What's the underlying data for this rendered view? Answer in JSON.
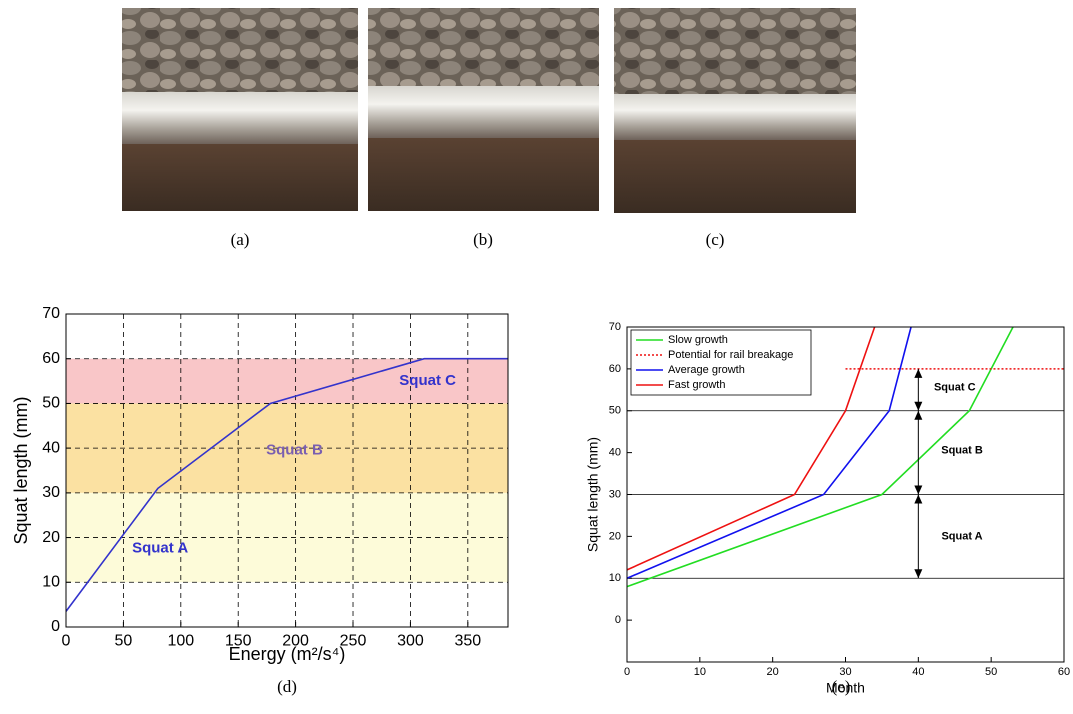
{
  "photos": [
    {
      "caption": "(a)"
    },
    {
      "caption": "(b)"
    },
    {
      "caption": "(c)"
    }
  ],
  "chart_data": [
    {
      "type": "line",
      "caption": "(d)",
      "x_label": "Energy (m²/s⁴)",
      "y_label": "Squat length (mm)",
      "xlim": [
        0,
        385
      ],
      "ylim": [
        0,
        70
      ],
      "xticks": [
        0,
        50,
        100,
        150,
        200,
        250,
        300,
        350
      ],
      "yticks": [
        0,
        10,
        20,
        30,
        40,
        50,
        60,
        70
      ],
      "grid": true,
      "bands": [
        {
          "from": 10,
          "to": 30,
          "color": "#fdfbd9",
          "label": "Squat A",
          "label_color": "#3333cc",
          "text_x": 82,
          "text_y": 17.5
        },
        {
          "from": 30,
          "to": 50,
          "color": "#fbe1a2",
          "label": "Squat B",
          "label_color": "#7a5fb0",
          "text_x": 199,
          "text_y": 39.5
        },
        {
          "from": 50,
          "to": 60,
          "color": "#f9c6c8",
          "label": "Squat C",
          "label_color": "#3333cc",
          "text_x": 315,
          "text_y": 55
        }
      ],
      "series": [
        {
          "color": "#3333cc",
          "x": [
            0,
            80,
            178,
            312,
            385
          ],
          "values": [
            3.5,
            31,
            50,
            60,
            60
          ]
        }
      ]
    },
    {
      "type": "line",
      "caption": "(e)",
      "x_label": "Month",
      "y_label": "Squat length (mm)",
      "xlim": [
        0,
        60
      ],
      "ylim": [
        -10,
        70
      ],
      "xticks": [
        0,
        10,
        20,
        30,
        40,
        50,
        60
      ],
      "yticks": [
        0,
        10,
        20,
        30,
        40,
        50,
        60,
        70
      ],
      "grid": false,
      "legend": "upper-left",
      "hlines": [
        10,
        30,
        50
      ],
      "series": [
        {
          "name": "Slow growth",
          "color": "#22dd22",
          "x": [
            0,
            35,
            47,
            53
          ],
          "values": [
            8,
            30,
            50,
            70
          ]
        },
        {
          "name": "Potential for rail breakage",
          "color": "#ee1111",
          "dotted": true,
          "x": [
            30,
            60
          ],
          "values": [
            60,
            60
          ]
        },
        {
          "name": "Average growth",
          "color": "#1111ee",
          "x": [
            0,
            27,
            36,
            39
          ],
          "values": [
            10,
            30,
            50,
            70
          ]
        },
        {
          "name": "Fast growth",
          "color": "#ee1111",
          "x": [
            0,
            23,
            30,
            34
          ],
          "values": [
            12,
            30,
            50,
            70
          ]
        }
      ],
      "arrows": [
        {
          "x": 40,
          "from": 10,
          "to": 30,
          "label": "Squat A",
          "text_x": 46,
          "text_y": 20
        },
        {
          "x": 40,
          "from": 30,
          "to": 50,
          "label": "Squat B",
          "text_x": 46,
          "text_y": 40.5
        },
        {
          "x": 40,
          "from": 50,
          "to": 60,
          "label": "Squat C",
          "text_x": 45,
          "text_y": 55.5
        }
      ]
    }
  ]
}
